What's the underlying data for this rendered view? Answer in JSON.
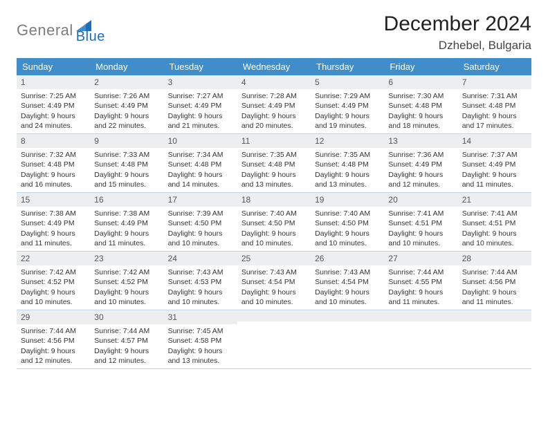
{
  "logo": {
    "part1": "General",
    "part2": "Blue"
  },
  "title": "December 2024",
  "location": "Dzhebel, Bulgaria",
  "colors": {
    "header_bg": "#3f8ecb",
    "header_text": "#ffffff",
    "daynum_bg": "#eceef0",
    "week_border": "#c2d4e3",
    "body_text": "#333333",
    "logo_gray": "#7d7d7d",
    "logo_blue": "#1e6fb8"
  },
  "typography": {
    "title_fontsize": 30,
    "location_fontsize": 17,
    "weekday_fontsize": 13,
    "daynum_fontsize": 12,
    "cell_fontsize": 10.5
  },
  "weekdays": [
    "Sunday",
    "Monday",
    "Tuesday",
    "Wednesday",
    "Thursday",
    "Friday",
    "Saturday"
  ],
  "weeks": [
    [
      {
        "n": "1",
        "sunrise": "Sunrise: 7:25 AM",
        "sunset": "Sunset: 4:49 PM",
        "daylight": "Daylight: 9 hours and 24 minutes."
      },
      {
        "n": "2",
        "sunrise": "Sunrise: 7:26 AM",
        "sunset": "Sunset: 4:49 PM",
        "daylight": "Daylight: 9 hours and 22 minutes."
      },
      {
        "n": "3",
        "sunrise": "Sunrise: 7:27 AM",
        "sunset": "Sunset: 4:49 PM",
        "daylight": "Daylight: 9 hours and 21 minutes."
      },
      {
        "n": "4",
        "sunrise": "Sunrise: 7:28 AM",
        "sunset": "Sunset: 4:49 PM",
        "daylight": "Daylight: 9 hours and 20 minutes."
      },
      {
        "n": "5",
        "sunrise": "Sunrise: 7:29 AM",
        "sunset": "Sunset: 4:49 PM",
        "daylight": "Daylight: 9 hours and 19 minutes."
      },
      {
        "n": "6",
        "sunrise": "Sunrise: 7:30 AM",
        "sunset": "Sunset: 4:48 PM",
        "daylight": "Daylight: 9 hours and 18 minutes."
      },
      {
        "n": "7",
        "sunrise": "Sunrise: 7:31 AM",
        "sunset": "Sunset: 4:48 PM",
        "daylight": "Daylight: 9 hours and 17 minutes."
      }
    ],
    [
      {
        "n": "8",
        "sunrise": "Sunrise: 7:32 AM",
        "sunset": "Sunset: 4:48 PM",
        "daylight": "Daylight: 9 hours and 16 minutes."
      },
      {
        "n": "9",
        "sunrise": "Sunrise: 7:33 AM",
        "sunset": "Sunset: 4:48 PM",
        "daylight": "Daylight: 9 hours and 15 minutes."
      },
      {
        "n": "10",
        "sunrise": "Sunrise: 7:34 AM",
        "sunset": "Sunset: 4:48 PM",
        "daylight": "Daylight: 9 hours and 14 minutes."
      },
      {
        "n": "11",
        "sunrise": "Sunrise: 7:35 AM",
        "sunset": "Sunset: 4:48 PM",
        "daylight": "Daylight: 9 hours and 13 minutes."
      },
      {
        "n": "12",
        "sunrise": "Sunrise: 7:35 AM",
        "sunset": "Sunset: 4:48 PM",
        "daylight": "Daylight: 9 hours and 13 minutes."
      },
      {
        "n": "13",
        "sunrise": "Sunrise: 7:36 AM",
        "sunset": "Sunset: 4:49 PM",
        "daylight": "Daylight: 9 hours and 12 minutes."
      },
      {
        "n": "14",
        "sunrise": "Sunrise: 7:37 AM",
        "sunset": "Sunset: 4:49 PM",
        "daylight": "Daylight: 9 hours and 11 minutes."
      }
    ],
    [
      {
        "n": "15",
        "sunrise": "Sunrise: 7:38 AM",
        "sunset": "Sunset: 4:49 PM",
        "daylight": "Daylight: 9 hours and 11 minutes."
      },
      {
        "n": "16",
        "sunrise": "Sunrise: 7:38 AM",
        "sunset": "Sunset: 4:49 PM",
        "daylight": "Daylight: 9 hours and 11 minutes."
      },
      {
        "n": "17",
        "sunrise": "Sunrise: 7:39 AM",
        "sunset": "Sunset: 4:50 PM",
        "daylight": "Daylight: 9 hours and 10 minutes."
      },
      {
        "n": "18",
        "sunrise": "Sunrise: 7:40 AM",
        "sunset": "Sunset: 4:50 PM",
        "daylight": "Daylight: 9 hours and 10 minutes."
      },
      {
        "n": "19",
        "sunrise": "Sunrise: 7:40 AM",
        "sunset": "Sunset: 4:50 PM",
        "daylight": "Daylight: 9 hours and 10 minutes."
      },
      {
        "n": "20",
        "sunrise": "Sunrise: 7:41 AM",
        "sunset": "Sunset: 4:51 PM",
        "daylight": "Daylight: 9 hours and 10 minutes."
      },
      {
        "n": "21",
        "sunrise": "Sunrise: 7:41 AM",
        "sunset": "Sunset: 4:51 PM",
        "daylight": "Daylight: 9 hours and 10 minutes."
      }
    ],
    [
      {
        "n": "22",
        "sunrise": "Sunrise: 7:42 AM",
        "sunset": "Sunset: 4:52 PM",
        "daylight": "Daylight: 9 hours and 10 minutes."
      },
      {
        "n": "23",
        "sunrise": "Sunrise: 7:42 AM",
        "sunset": "Sunset: 4:52 PM",
        "daylight": "Daylight: 9 hours and 10 minutes."
      },
      {
        "n": "24",
        "sunrise": "Sunrise: 7:43 AM",
        "sunset": "Sunset: 4:53 PM",
        "daylight": "Daylight: 9 hours and 10 minutes."
      },
      {
        "n": "25",
        "sunrise": "Sunrise: 7:43 AM",
        "sunset": "Sunset: 4:54 PM",
        "daylight": "Daylight: 9 hours and 10 minutes."
      },
      {
        "n": "26",
        "sunrise": "Sunrise: 7:43 AM",
        "sunset": "Sunset: 4:54 PM",
        "daylight": "Daylight: 9 hours and 10 minutes."
      },
      {
        "n": "27",
        "sunrise": "Sunrise: 7:44 AM",
        "sunset": "Sunset: 4:55 PM",
        "daylight": "Daylight: 9 hours and 11 minutes."
      },
      {
        "n": "28",
        "sunrise": "Sunrise: 7:44 AM",
        "sunset": "Sunset: 4:56 PM",
        "daylight": "Daylight: 9 hours and 11 minutes."
      }
    ],
    [
      {
        "n": "29",
        "sunrise": "Sunrise: 7:44 AM",
        "sunset": "Sunset: 4:56 PM",
        "daylight": "Daylight: 9 hours and 12 minutes."
      },
      {
        "n": "30",
        "sunrise": "Sunrise: 7:44 AM",
        "sunset": "Sunset: 4:57 PM",
        "daylight": "Daylight: 9 hours and 12 minutes."
      },
      {
        "n": "31",
        "sunrise": "Sunrise: 7:45 AM",
        "sunset": "Sunset: 4:58 PM",
        "daylight": "Daylight: 9 hours and 13 minutes."
      },
      {
        "n": "",
        "sunrise": "",
        "sunset": "",
        "daylight": "",
        "empty": true
      },
      {
        "n": "",
        "sunrise": "",
        "sunset": "",
        "daylight": "",
        "empty": true
      },
      {
        "n": "",
        "sunrise": "",
        "sunset": "",
        "daylight": "",
        "empty": true
      },
      {
        "n": "",
        "sunrise": "",
        "sunset": "",
        "daylight": "",
        "empty": true
      }
    ]
  ]
}
